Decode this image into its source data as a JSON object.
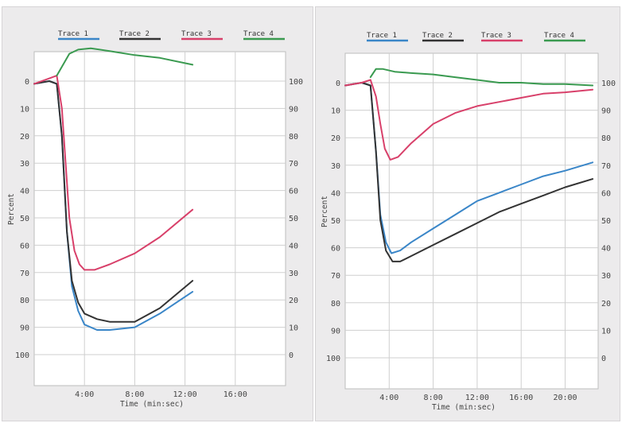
{
  "chart_data": [
    {
      "type": "line",
      "title": "",
      "xlabel": "Time (min:sec)",
      "ylabel": "Percent",
      "xlim": [
        0,
        20
      ],
      "ylim": [
        0,
        110
      ],
      "y_inverted": true,
      "x_ticks": [
        {
          "v": 4,
          "label": "4:00"
        },
        {
          "v": 8,
          "label": "8:00"
        },
        {
          "v": 12,
          "label": "12:00"
        },
        {
          "v": 16,
          "label": "16:00"
        }
      ],
      "x_grid": [
        4,
        8,
        12,
        16
      ],
      "y_ticks_left": [
        "0",
        "10",
        "20",
        "30",
        "40",
        "50",
        "60",
        "70",
        "80",
        "90",
        "100"
      ],
      "y_ticks_right": [
        "100",
        "90",
        "80",
        "70",
        "60",
        "50",
        "40",
        "30",
        "20",
        "10",
        "0"
      ],
      "grid": true,
      "legend": "top",
      "series": [
        {
          "name": "Trace 1",
          "color": "#3a86c8",
          "points": [
            [
              0,
              1
            ],
            [
              1.2,
              0
            ],
            [
              1.8,
              1
            ],
            [
              2.2,
              20
            ],
            [
              2.6,
              55
            ],
            [
              3,
              75
            ],
            [
              3.5,
              84
            ],
            [
              4,
              89
            ],
            [
              5,
              91
            ],
            [
              6,
              91
            ],
            [
              8,
              90
            ],
            [
              10,
              85
            ],
            [
              12.6,
              77
            ]
          ]
        },
        {
          "name": "Trace 2",
          "color": "#333333",
          "points": [
            [
              0,
              1
            ],
            [
              1.2,
              0
            ],
            [
              1.8,
              1
            ],
            [
              2.2,
              20
            ],
            [
              2.6,
              55
            ],
            [
              3,
              73
            ],
            [
              3.5,
              81
            ],
            [
              4,
              85
            ],
            [
              5,
              87
            ],
            [
              6,
              88
            ],
            [
              8,
              88
            ],
            [
              10,
              83
            ],
            [
              12.6,
              73
            ]
          ]
        },
        {
          "name": "Trace 3",
          "color": "#d8406a",
          "points": [
            [
              0,
              1
            ],
            [
              1.2,
              -1
            ],
            [
              1.8,
              -2
            ],
            [
              2.2,
              10
            ],
            [
              2.5,
              30
            ],
            [
              2.8,
              50
            ],
            [
              3.2,
              62
            ],
            [
              3.6,
              67
            ],
            [
              4,
              69
            ],
            [
              4.8,
              69
            ],
            [
              6,
              67
            ],
            [
              8,
              63
            ],
            [
              10,
              57
            ],
            [
              12.6,
              47
            ]
          ]
        },
        {
          "name": "Trace 4",
          "color": "#3a9a50",
          "points": [
            [
              1.8,
              -2
            ],
            [
              2.3,
              -6
            ],
            [
              2.8,
              -10
            ],
            [
              3.5,
              -11.5
            ],
            [
              4.5,
              -12
            ],
            [
              6,
              -11
            ],
            [
              8,
              -9.5
            ],
            [
              10,
              -8.5
            ],
            [
              12.6,
              -6
            ]
          ]
        }
      ]
    },
    {
      "type": "line",
      "title": "",
      "xlabel": "Time (min:sec)",
      "ylabel": "Percent",
      "xlim": [
        0,
        23
      ],
      "ylim": [
        0,
        110
      ],
      "y_inverted": true,
      "x_ticks": [
        {
          "v": 4,
          "label": "4:00"
        },
        {
          "v": 8,
          "label": "8:00"
        },
        {
          "v": 12,
          "label": "12:00"
        },
        {
          "v": 16,
          "label": "16:00"
        },
        {
          "v": 20,
          "label": "20:00"
        }
      ],
      "x_grid": [
        4,
        8,
        12,
        16,
        20
      ],
      "y_ticks_left": [
        "0",
        "10",
        "20",
        "30",
        "40",
        "50",
        "60",
        "70",
        "80",
        "90",
        "100"
      ],
      "y_ticks_right": [
        "100",
        "90",
        "80",
        "70",
        "60",
        "50",
        "40",
        "30",
        "20",
        "10",
        "0"
      ],
      "grid": true,
      "legend": "top",
      "series": [
        {
          "name": "Trace 1",
          "color": "#3a86c8",
          "points": [
            [
              0,
              1
            ],
            [
              1.5,
              0
            ],
            [
              2.3,
              1
            ],
            [
              2.8,
              25
            ],
            [
              3.2,
              48
            ],
            [
              3.7,
              58
            ],
            [
              4.2,
              62
            ],
            [
              5,
              61
            ],
            [
              6,
              58
            ],
            [
              8,
              53
            ],
            [
              10,
              48
            ],
            [
              12,
              43
            ],
            [
              14,
              40
            ],
            [
              16,
              37
            ],
            [
              18,
              34
            ],
            [
              20,
              32
            ],
            [
              22.5,
              29
            ]
          ]
        },
        {
          "name": "Trace 2",
          "color": "#333333",
          "points": [
            [
              0,
              1
            ],
            [
              1.5,
              0
            ],
            [
              2.3,
              1
            ],
            [
              2.8,
              25
            ],
            [
              3.2,
              50
            ],
            [
              3.7,
              61
            ],
            [
              4.3,
              65
            ],
            [
              5,
              65
            ],
            [
              6,
              63
            ],
            [
              8,
              59
            ],
            [
              10,
              55
            ],
            [
              12,
              51
            ],
            [
              14,
              47
            ],
            [
              16,
              44
            ],
            [
              18,
              41
            ],
            [
              20,
              38
            ],
            [
              22.5,
              35
            ]
          ]
        },
        {
          "name": "Trace 3",
          "color": "#d8406a",
          "points": [
            [
              0,
              1
            ],
            [
              1.5,
              0
            ],
            [
              2.3,
              -1
            ],
            [
              2.8,
              5
            ],
            [
              3.2,
              15
            ],
            [
              3.6,
              24
            ],
            [
              4.1,
              28
            ],
            [
              4.8,
              27
            ],
            [
              6,
              22
            ],
            [
              8,
              15
            ],
            [
              10,
              11
            ],
            [
              12,
              8.5
            ],
            [
              14,
              7
            ],
            [
              16,
              5.5
            ],
            [
              18,
              4
            ],
            [
              20,
              3.5
            ],
            [
              22.5,
              2.5
            ]
          ]
        },
        {
          "name": "Trace 4",
          "color": "#3a9a50",
          "points": [
            [
              2.3,
              -2
            ],
            [
              2.8,
              -5
            ],
            [
              3.4,
              -5
            ],
            [
              4.5,
              -4
            ],
            [
              6,
              -3.5
            ],
            [
              8,
              -3
            ],
            [
              10,
              -2
            ],
            [
              12,
              -1
            ],
            [
              14,
              0
            ],
            [
              16,
              0
            ],
            [
              18,
              0.5
            ],
            [
              20,
              0.5
            ],
            [
              22.5,
              1
            ]
          ]
        }
      ]
    }
  ]
}
